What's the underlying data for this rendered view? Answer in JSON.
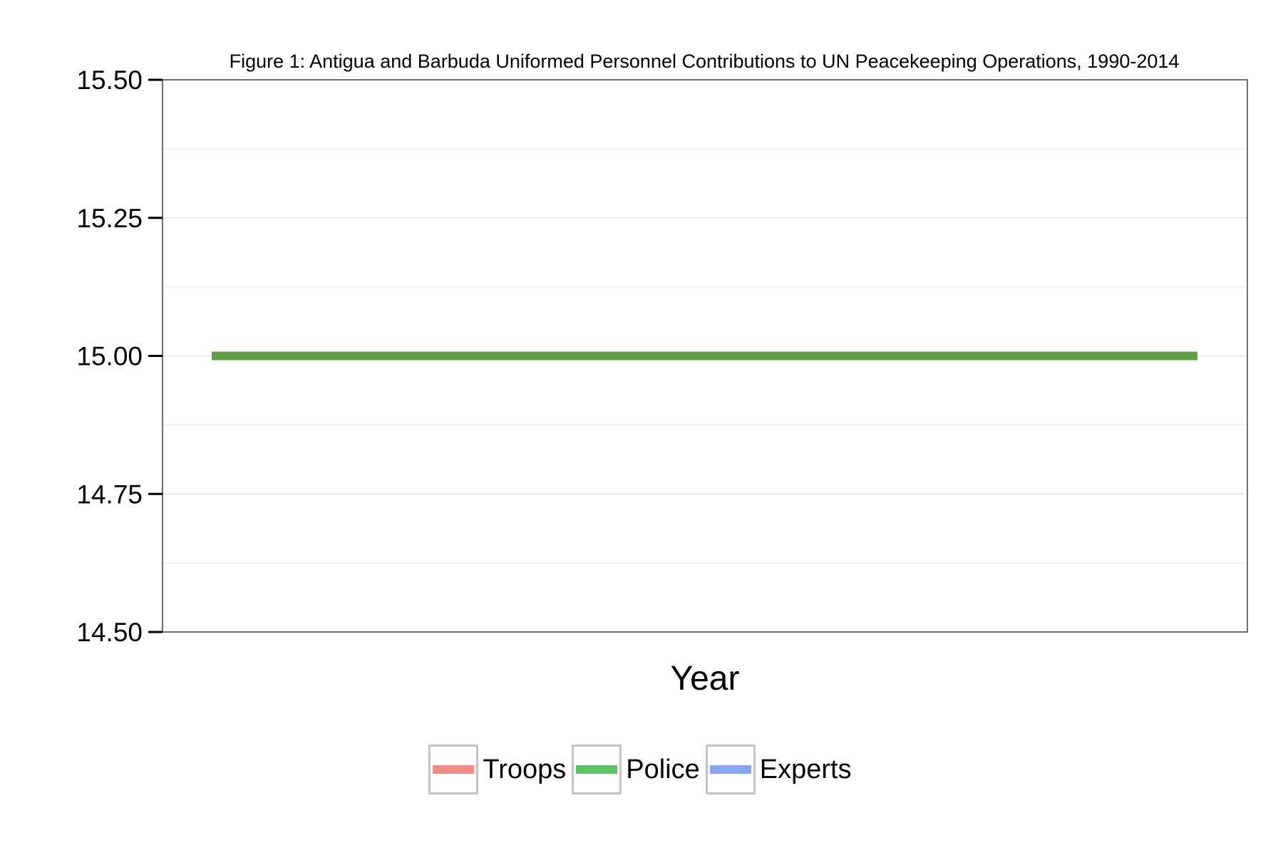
{
  "chart_data": {
    "type": "line",
    "title": "Figure 1: Antigua and Barbuda Uniformed Personnel Contributions to UN Peacekeeping Operations, 1990-2014",
    "xlabel": "Year",
    "ylabel": "",
    "ylim": [
      14.5,
      15.5
    ],
    "yticks": [
      "14.50",
      "14.75",
      "15.00",
      "15.25",
      "15.50"
    ],
    "x_range": [
      1990,
      2014
    ],
    "grid": true,
    "legend_position": "bottom",
    "series": [
      {
        "name": "Troops",
        "color": "#f08b86",
        "points": []
      },
      {
        "name": "Police",
        "color": "#5aa148",
        "points": [
          [
            1990,
            15
          ],
          [
            2014,
            15
          ]
        ]
      },
      {
        "name": "Experts",
        "color": "#83a6f2",
        "points": []
      }
    ],
    "legend_colors": [
      "#f08b86",
      "#5dc262",
      "#83a6f2"
    ]
  }
}
